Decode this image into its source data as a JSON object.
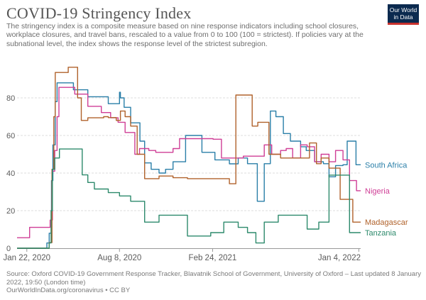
{
  "header": {
    "title": "COVID-19 Stringency Index",
    "subtitle": "The stringency index is a composite measure based on nine response indicators including school closures, workplace closures, and travel bans, rescaled to a value from 0 to 100 (100 = strictest). If policies vary at the subnational level, the index shows the response level of the strictest subregion.",
    "logo_line1": "Our World",
    "logo_line2": "in Data"
  },
  "footer": {
    "source": "Source: Oxford COVID-19 Government Response Tracker, Blavatnik School of Government, University of Oxford – Last updated 8 January 2022, 19:50 (London time)",
    "url_license": "OurWorldInData.org/coronavirus • CC BY"
  },
  "colors": {
    "south_africa": "#2a7fa8",
    "nigeria": "#cf3e96",
    "madagascar": "#b0622b",
    "tanzania": "#2d8a6c",
    "grid": "#dddddd",
    "axis_text": "#5b5b5b"
  },
  "chart_data": {
    "type": "line",
    "title": "COVID-19 Stringency Index",
    "xlabel": "",
    "ylabel": "",
    "x_type": "date",
    "xlim": [
      "2020-01-01",
      "2022-01-08"
    ],
    "ylim": [
      0,
      100
    ],
    "y_ticks": [
      0,
      20,
      40,
      60,
      80
    ],
    "x_ticks": [
      {
        "date": "2020-01-22",
        "label": "Jan 22, 2020"
      },
      {
        "date": "2020-08-08",
        "label": "Aug 8, 2020"
      },
      {
        "date": "2021-02-24",
        "label": "Feb 24, 2021"
      },
      {
        "date": "2022-01-04",
        "label": "Jan 4, 2022"
      }
    ],
    "grid": "horizontal-dashed",
    "legend": "right, labels at line ends",
    "series": [
      {
        "name": "South Africa",
        "color": "#2a7fa8",
        "points": [
          [
            "2020-01-01",
            0
          ],
          [
            "2020-03-05",
            2.8
          ],
          [
            "2020-03-10",
            8
          ],
          [
            "2020-03-15",
            36
          ],
          [
            "2020-03-18",
            55
          ],
          [
            "2020-03-23",
            78
          ],
          [
            "2020-03-27",
            88
          ],
          [
            "2020-05-01",
            84.3
          ],
          [
            "2020-06-01",
            80.6
          ],
          [
            "2020-07-01",
            80.6
          ],
          [
            "2020-07-15",
            76.9
          ],
          [
            "2020-08-08",
            83
          ],
          [
            "2020-08-10",
            80
          ],
          [
            "2020-08-18",
            75
          ],
          [
            "2020-09-01",
            66.7
          ],
          [
            "2020-09-21",
            57
          ],
          [
            "2020-10-01",
            45.4
          ],
          [
            "2020-10-15",
            42
          ],
          [
            "2020-11-01",
            40
          ],
          [
            "2020-11-15",
            42
          ],
          [
            "2020-12-01",
            46
          ],
          [
            "2020-12-28",
            60
          ],
          [
            "2021-01-10",
            60
          ],
          [
            "2021-02-01",
            51
          ],
          [
            "2021-03-01",
            47
          ],
          [
            "2021-04-01",
            44.9
          ],
          [
            "2021-04-20",
            48
          ],
          [
            "2021-05-10",
            45
          ],
          [
            "2021-05-31",
            25
          ],
          [
            "2021-06-15",
            45
          ],
          [
            "2021-06-28",
            73
          ],
          [
            "2021-07-10",
            70
          ],
          [
            "2021-07-26",
            61
          ],
          [
            "2021-08-10",
            57
          ],
          [
            "2021-09-01",
            54
          ],
          [
            "2021-09-13",
            52
          ],
          [
            "2021-10-01",
            46
          ],
          [
            "2021-10-20",
            45
          ],
          [
            "2021-11-01",
            38
          ],
          [
            "2021-11-15",
            44
          ],
          [
            "2021-12-01",
            44.4
          ],
          [
            "2021-12-10",
            57
          ],
          [
            "2021-12-29",
            44.4
          ],
          [
            "2022-01-08",
            44.4
          ]
        ]
      },
      {
        "name": "Nigeria",
        "color": "#cf3e96",
        "points": [
          [
            "2020-01-01",
            5.6
          ],
          [
            "2020-01-28",
            11.1
          ],
          [
            "2020-03-01",
            11.1
          ],
          [
            "2020-03-12",
            15
          ],
          [
            "2020-03-17",
            41
          ],
          [
            "2020-03-22",
            52
          ],
          [
            "2020-03-27",
            70
          ],
          [
            "2020-03-31",
            85.6
          ],
          [
            "2020-05-04",
            82
          ],
          [
            "2020-06-01",
            75.5
          ],
          [
            "2020-06-30",
            72.2
          ],
          [
            "2020-07-20",
            69.4
          ],
          [
            "2020-08-05",
            67
          ],
          [
            "2020-08-20",
            61.6
          ],
          [
            "2020-09-10",
            50
          ],
          [
            "2020-09-20",
            53
          ],
          [
            "2020-10-10",
            52
          ],
          [
            "2020-10-25",
            51
          ],
          [
            "2020-12-01",
            53
          ],
          [
            "2020-12-15",
            58.3
          ],
          [
            "2021-01-15",
            58.3
          ],
          [
            "2021-02-01",
            58.3
          ],
          [
            "2021-02-25",
            58
          ],
          [
            "2021-03-15",
            48
          ],
          [
            "2021-04-01",
            48
          ],
          [
            "2021-05-01",
            49
          ],
          [
            "2021-05-20",
            49
          ],
          [
            "2021-06-15",
            55
          ],
          [
            "2021-07-01",
            50
          ],
          [
            "2021-07-20",
            52
          ],
          [
            "2021-08-01",
            53
          ],
          [
            "2021-08-15",
            48
          ],
          [
            "2021-09-01",
            55
          ],
          [
            "2021-09-15",
            54
          ],
          [
            "2021-10-01",
            46
          ],
          [
            "2021-10-15",
            50
          ],
          [
            "2021-11-01",
            46
          ],
          [
            "2021-11-15",
            52
          ],
          [
            "2021-12-01",
            47
          ],
          [
            "2021-12-15",
            36
          ],
          [
            "2021-12-30",
            30.6
          ],
          [
            "2022-01-08",
            30.6
          ]
        ]
      },
      {
        "name": "Madagascar",
        "color": "#b0622b",
        "points": [
          [
            "2020-01-01",
            0
          ],
          [
            "2020-03-10",
            3
          ],
          [
            "2020-03-16",
            42
          ],
          [
            "2020-03-20",
            70
          ],
          [
            "2020-03-23",
            93.5
          ],
          [
            "2020-04-20",
            96.3
          ],
          [
            "2020-05-10",
            80
          ],
          [
            "2020-05-18",
            68
          ],
          [
            "2020-06-01",
            69.4
          ],
          [
            "2020-07-05",
            70
          ],
          [
            "2020-07-15",
            69.5
          ],
          [
            "2020-08-01",
            68
          ],
          [
            "2020-08-10",
            73
          ],
          [
            "2020-08-20",
            70
          ],
          [
            "2020-09-01",
            65
          ],
          [
            "2020-09-15",
            50
          ],
          [
            "2020-10-01",
            37
          ],
          [
            "2020-11-01",
            38.4
          ],
          [
            "2020-12-01",
            37.5
          ],
          [
            "2021-01-01",
            37
          ],
          [
            "2021-03-01",
            37
          ],
          [
            "2021-04-01",
            34.3
          ],
          [
            "2021-04-15",
            81.5
          ],
          [
            "2021-05-10",
            81.5
          ],
          [
            "2021-05-20",
            65
          ],
          [
            "2021-06-01",
            67
          ],
          [
            "2021-06-18",
            67
          ],
          [
            "2021-06-25",
            50
          ],
          [
            "2021-07-20",
            48
          ],
          [
            "2021-09-01",
            48
          ],
          [
            "2021-09-20",
            56
          ],
          [
            "2021-10-05",
            45
          ],
          [
            "2021-10-15",
            48
          ],
          [
            "2021-11-01",
            42.6
          ],
          [
            "2021-11-15",
            42.6
          ],
          [
            "2021-11-25",
            26
          ],
          [
            "2021-12-15",
            26
          ],
          [
            "2021-12-22",
            13.9
          ],
          [
            "2022-01-08",
            13.9
          ]
        ]
      },
      {
        "name": "Tanzania",
        "color": "#2d8a6c",
        "points": [
          [
            "2020-01-01",
            0
          ],
          [
            "2020-03-05",
            0
          ],
          [
            "2020-03-10",
            2.8
          ],
          [
            "2020-03-14",
            20
          ],
          [
            "2020-03-17",
            42
          ],
          [
            "2020-03-22",
            48
          ],
          [
            "2020-04-01",
            52.8
          ],
          [
            "2020-05-15",
            52.8
          ],
          [
            "2020-05-20",
            39
          ],
          [
            "2020-06-01",
            35
          ],
          [
            "2020-06-15",
            31.5
          ],
          [
            "2020-07-15",
            29.6
          ],
          [
            "2020-08-01",
            29.6
          ],
          [
            "2020-08-08",
            27.8
          ],
          [
            "2020-09-01",
            25
          ],
          [
            "2020-10-01",
            13.9
          ],
          [
            "2020-11-01",
            17.6
          ],
          [
            "2020-12-01",
            17.6
          ],
          [
            "2021-01-01",
            6.5
          ],
          [
            "2021-02-01",
            6.5
          ],
          [
            "2021-02-20",
            8.3
          ],
          [
            "2021-03-20",
            13.9
          ],
          [
            "2021-04-20",
            11.1
          ],
          [
            "2021-05-10",
            8.3
          ],
          [
            "2021-05-28",
            2.8
          ],
          [
            "2021-06-15",
            13.9
          ],
          [
            "2021-07-15",
            17.6
          ],
          [
            "2021-08-15",
            17.6
          ],
          [
            "2021-09-15",
            10.2
          ],
          [
            "2021-10-10",
            13.9
          ],
          [
            "2021-11-01",
            38.9
          ],
          [
            "2021-12-01",
            38.9
          ],
          [
            "2021-12-15",
            8.3
          ],
          [
            "2022-01-08",
            8.3
          ]
        ]
      }
    ]
  }
}
